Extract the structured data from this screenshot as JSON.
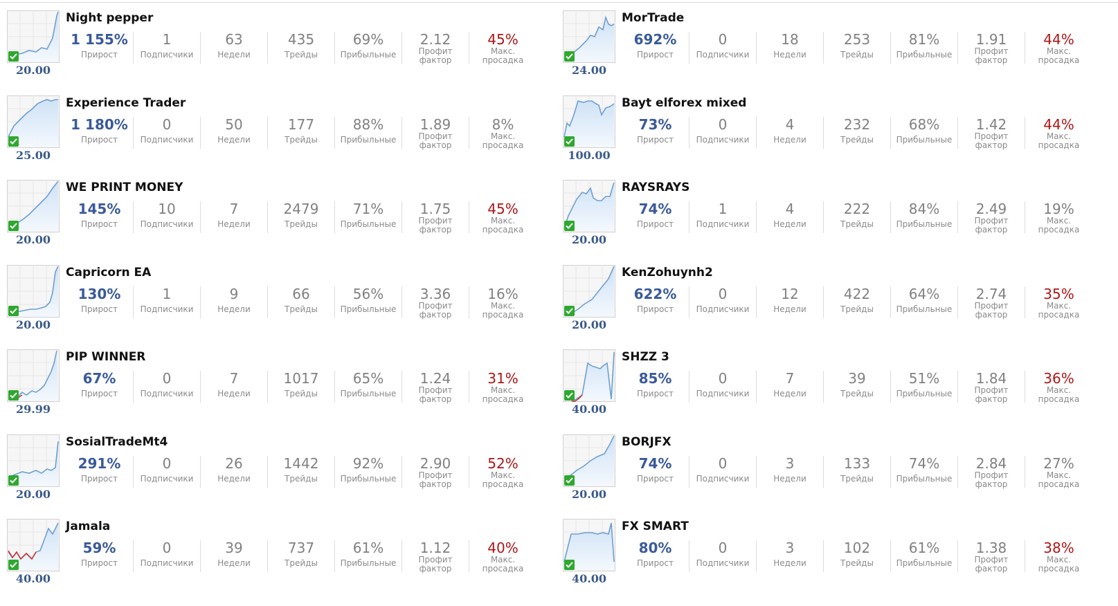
{
  "labels": {
    "growth": "Прирост",
    "subscribers": "Подписчики",
    "weeks": "Недели",
    "trades": "Трейды",
    "profitable": "Прибыльные",
    "profit_factor_1": "Профит",
    "profit_factor_2": "фактор",
    "max_dd_1": "Макс.",
    "max_dd_2": "просадка"
  },
  "colors": {
    "growth": "#3a5a9a",
    "drawdown_high": "#b01515",
    "chart_line": "#6e9fd0",
    "chart_fill": "#dbeaf8",
    "check": "#2fa82f"
  },
  "signals": [
    {
      "name": "Night pepper",
      "price": "20.00",
      "growth": "1 155%",
      "subscribers": "1",
      "weeks": "63",
      "trades": "435",
      "profitable": "69%",
      "profit_factor": "2.12",
      "max_drawdown": "45%",
      "drawdown_high": true,
      "thumb_icon": "growth-chart-icon"
    },
    {
      "name": "MorTrade",
      "price": "24.00",
      "growth": "692%",
      "subscribers": "0",
      "weeks": "18",
      "trades": "253",
      "profitable": "81%",
      "profit_factor": "1.91",
      "max_drawdown": "44%",
      "drawdown_high": true,
      "thumb_icon": "growth-chart-icon"
    },
    {
      "name": "Experience Trader",
      "price": "25.00",
      "growth": "1 180%",
      "subscribers": "0",
      "weeks": "50",
      "trades": "177",
      "profitable": "88%",
      "profit_factor": "1.89",
      "max_drawdown": "8%",
      "drawdown_high": false,
      "thumb_icon": "growth-chart-icon"
    },
    {
      "name": "Bayt elforex mixed",
      "price": "100.00",
      "growth": "73%",
      "subscribers": "0",
      "weeks": "4",
      "trades": "232",
      "profitable": "68%",
      "profit_factor": "1.42",
      "max_drawdown": "44%",
      "drawdown_high": true,
      "thumb_icon": "growth-chart-icon"
    },
    {
      "name": "WE PRINT MONEY",
      "price": "20.00",
      "growth": "145%",
      "subscribers": "10",
      "weeks": "7",
      "trades": "2479",
      "profitable": "71%",
      "profit_factor": "1.75",
      "max_drawdown": "45%",
      "drawdown_high": true,
      "thumb_icon": "growth-chart-icon"
    },
    {
      "name": "RAYSRAYS",
      "price": "20.00",
      "growth": "74%",
      "subscribers": "1",
      "weeks": "4",
      "trades": "222",
      "profitable": "84%",
      "profit_factor": "2.49",
      "max_drawdown": "19%",
      "drawdown_high": false,
      "thumb_icon": "growth-chart-icon"
    },
    {
      "name": "Capricorn EA",
      "price": "20.00",
      "growth": "130%",
      "subscribers": "1",
      "weeks": "9",
      "trades": "66",
      "profitable": "56%",
      "profit_factor": "3.36",
      "max_drawdown": "16%",
      "drawdown_high": false,
      "thumb_icon": "growth-chart-icon"
    },
    {
      "name": "KenZohuynh2",
      "price": "20.00",
      "growth": "622%",
      "subscribers": "0",
      "weeks": "12",
      "trades": "422",
      "profitable": "64%",
      "profit_factor": "2.74",
      "max_drawdown": "35%",
      "drawdown_high": true,
      "thumb_icon": "growth-chart-icon"
    },
    {
      "name": "PIP WINNER",
      "price": "29.99",
      "growth": "67%",
      "subscribers": "0",
      "weeks": "7",
      "trades": "1017",
      "profitable": "65%",
      "profit_factor": "1.24",
      "max_drawdown": "31%",
      "drawdown_high": true,
      "thumb_icon": "growth-chart-icon"
    },
    {
      "name": "SHZZ 3",
      "price": "40.00",
      "growth": "85%",
      "subscribers": "0",
      "weeks": "7",
      "trades": "39",
      "profitable": "51%",
      "profit_factor": "1.84",
      "max_drawdown": "36%",
      "drawdown_high": true,
      "thumb_icon": "growth-chart-icon"
    },
    {
      "name": "SosialTradeMt4",
      "price": "20.00",
      "growth": "291%",
      "subscribers": "0",
      "weeks": "26",
      "trades": "1442",
      "profitable": "92%",
      "profit_factor": "2.90",
      "max_drawdown": "52%",
      "drawdown_high": true,
      "thumb_icon": "growth-chart-icon"
    },
    {
      "name": "BORJFX",
      "price": "20.00",
      "growth": "74%",
      "subscribers": "0",
      "weeks": "3",
      "trades": "133",
      "profitable": "74%",
      "profit_factor": "2.84",
      "max_drawdown": "27%",
      "drawdown_high": false,
      "thumb_icon": "growth-chart-icon"
    },
    {
      "name": "Jamala",
      "price": "40.00",
      "growth": "59%",
      "subscribers": "0",
      "weeks": "39",
      "trades": "737",
      "profitable": "61%",
      "profit_factor": "1.12",
      "max_drawdown": "40%",
      "drawdown_high": true,
      "thumb_icon": "growth-chart-icon"
    },
    {
      "name": "FX SMART",
      "price": "40.00",
      "growth": "80%",
      "subscribers": "0",
      "weeks": "3",
      "trades": "102",
      "profitable": "61%",
      "profit_factor": "1.38",
      "max_drawdown": "38%",
      "drawdown_high": true,
      "thumb_icon": "growth-chart-icon"
    }
  ]
}
